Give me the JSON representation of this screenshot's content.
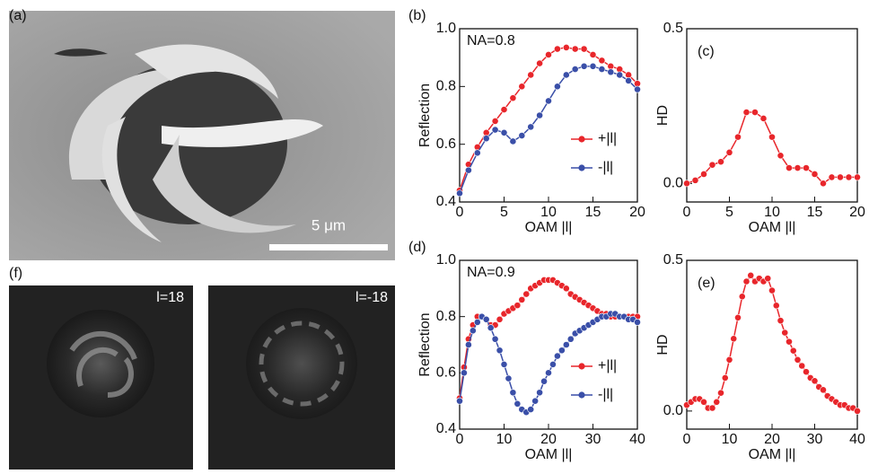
{
  "figure": {
    "panel_a": {
      "label": "(a)",
      "scale_bar": "5 μm"
    },
    "panel_f": {
      "label": "(f)",
      "images": [
        {
          "label": "l=18"
        },
        {
          "label": "l=-18"
        }
      ]
    }
  },
  "chart_data": [
    {
      "type": "line",
      "panel_label": "(b)",
      "annotation": "NA=0.8",
      "xlabel": "OAM |l|",
      "ylabel": "Reflection",
      "x": [
        0,
        1,
        2,
        3,
        4,
        5,
        6,
        7,
        8,
        9,
        10,
        11,
        12,
        13,
        14,
        15,
        16,
        17,
        18,
        19,
        20
      ],
      "series": [
        {
          "name": "+|l|",
          "color": "#e8262b",
          "values": [
            0.44,
            0.53,
            0.59,
            0.64,
            0.68,
            0.72,
            0.76,
            0.8,
            0.84,
            0.88,
            0.91,
            0.93,
            0.935,
            0.93,
            0.93,
            0.91,
            0.89,
            0.87,
            0.86,
            0.84,
            0.81
          ]
        },
        {
          "name": "-|l|",
          "color": "#3a4fa8",
          "values": [
            0.43,
            0.51,
            0.57,
            0.62,
            0.65,
            0.64,
            0.61,
            0.63,
            0.66,
            0.7,
            0.75,
            0.8,
            0.84,
            0.86,
            0.87,
            0.87,
            0.86,
            0.85,
            0.84,
            0.82,
            0.79
          ]
        }
      ],
      "xlim": [
        0,
        20
      ],
      "xticks": [
        0,
        5,
        10,
        15,
        20
      ],
      "ylim": [
        0.4,
        1.0
      ],
      "yticks": [
        0.4,
        0.6,
        0.8,
        {
          "value": 1,
          "label": "1.0"
        }
      ],
      "legend": "lower right"
    },
    {
      "type": "line",
      "panel_label": "(c)",
      "xlabel": "OAM |l|",
      "ylabel": "HD",
      "color": "#e8262b",
      "x": [
        0,
        1,
        2,
        3,
        4,
        5,
        6,
        7,
        8,
        9,
        10,
        11,
        12,
        13,
        14,
        15,
        16,
        17,
        18,
        19,
        20
      ],
      "values": [
        0.0,
        0.01,
        0.03,
        0.06,
        0.07,
        0.1,
        0.15,
        0.23,
        0.23,
        0.21,
        0.15,
        0.09,
        0.05,
        0.05,
        0.05,
        0.03,
        0.0,
        0.02,
        0.02,
        0.02,
        0.02
      ],
      "xlim": [
        0,
        20
      ],
      "xticks": [
        0,
        5,
        10,
        15,
        20
      ],
      "ylim": [
        -0.06,
        0.5
      ],
      "yticks": [
        {
          "value": 0,
          "label": "0.0"
        },
        0.5
      ]
    },
    {
      "type": "line",
      "panel_label": "(d)",
      "annotation": "NA=0.9",
      "xlabel": "OAM |l|",
      "ylabel": "Reflection",
      "x": [
        0,
        1,
        2,
        3,
        4,
        5,
        6,
        7,
        8,
        9,
        10,
        11,
        12,
        13,
        14,
        15,
        16,
        17,
        18,
        19,
        20,
        21,
        22,
        23,
        24,
        25,
        26,
        27,
        28,
        29,
        30,
        31,
        32,
        33,
        34,
        35,
        36,
        37,
        38,
        39,
        40
      ],
      "series": [
        {
          "name": "+|l|",
          "color": "#e8262b",
          "values": [
            0.51,
            0.62,
            0.72,
            0.77,
            0.8,
            0.8,
            0.79,
            0.77,
            0.77,
            0.79,
            0.81,
            0.82,
            0.83,
            0.84,
            0.86,
            0.88,
            0.9,
            0.91,
            0.92,
            0.93,
            0.93,
            0.93,
            0.92,
            0.91,
            0.9,
            0.88,
            0.87,
            0.86,
            0.85,
            0.84,
            0.83,
            0.82,
            0.81,
            0.81,
            0.8,
            0.8,
            0.8,
            0.8,
            0.8,
            0.8,
            0.8
          ]
        },
        {
          "name": "-|l|",
          "color": "#3a4fa8",
          "values": [
            0.5,
            0.6,
            0.7,
            0.75,
            0.78,
            0.8,
            0.79,
            0.76,
            0.72,
            0.68,
            0.63,
            0.58,
            0.53,
            0.49,
            0.47,
            0.46,
            0.47,
            0.5,
            0.53,
            0.57,
            0.6,
            0.63,
            0.66,
            0.68,
            0.7,
            0.72,
            0.74,
            0.75,
            0.76,
            0.77,
            0.78,
            0.79,
            0.8,
            0.8,
            0.81,
            0.81,
            0.8,
            0.8,
            0.79,
            0.79,
            0.78
          ]
        }
      ],
      "xlim": [
        0,
        40
      ],
      "xticks": [
        0,
        10,
        20,
        30,
        40
      ],
      "ylim": [
        0.4,
        1.0
      ],
      "yticks": [
        0.4,
        0.6,
        0.8,
        {
          "value": 1,
          "label": "1.0"
        }
      ],
      "legend": "lower right"
    },
    {
      "type": "line",
      "panel_label": "(e)",
      "xlabel": "OAM |l|",
      "ylabel": "HD",
      "color": "#e8262b",
      "x": [
        0,
        1,
        2,
        3,
        4,
        5,
        6,
        7,
        8,
        9,
        10,
        11,
        12,
        13,
        14,
        15,
        16,
        17,
        18,
        19,
        20,
        21,
        22,
        23,
        24,
        25,
        26,
        27,
        28,
        29,
        30,
        31,
        32,
        33,
        34,
        35,
        36,
        37,
        38,
        39,
        40
      ],
      "values": [
        0.02,
        0.03,
        0.04,
        0.04,
        0.03,
        0.01,
        0.01,
        0.03,
        0.06,
        0.11,
        0.17,
        0.24,
        0.31,
        0.38,
        0.43,
        0.45,
        0.43,
        0.44,
        0.43,
        0.44,
        0.4,
        0.35,
        0.3,
        0.26,
        0.23,
        0.2,
        0.17,
        0.15,
        0.13,
        0.11,
        0.1,
        0.08,
        0.07,
        0.05,
        0.04,
        0.03,
        0.02,
        0.02,
        0.01,
        0.01,
        0.0
      ],
      "xlim": [
        0,
        40
      ],
      "xticks": [
        0,
        10,
        20,
        30,
        40
      ],
      "ylim": [
        -0.06,
        0.5
      ],
      "yticks": [
        {
          "value": 0,
          "label": "0.0"
        },
        0.5
      ]
    }
  ]
}
